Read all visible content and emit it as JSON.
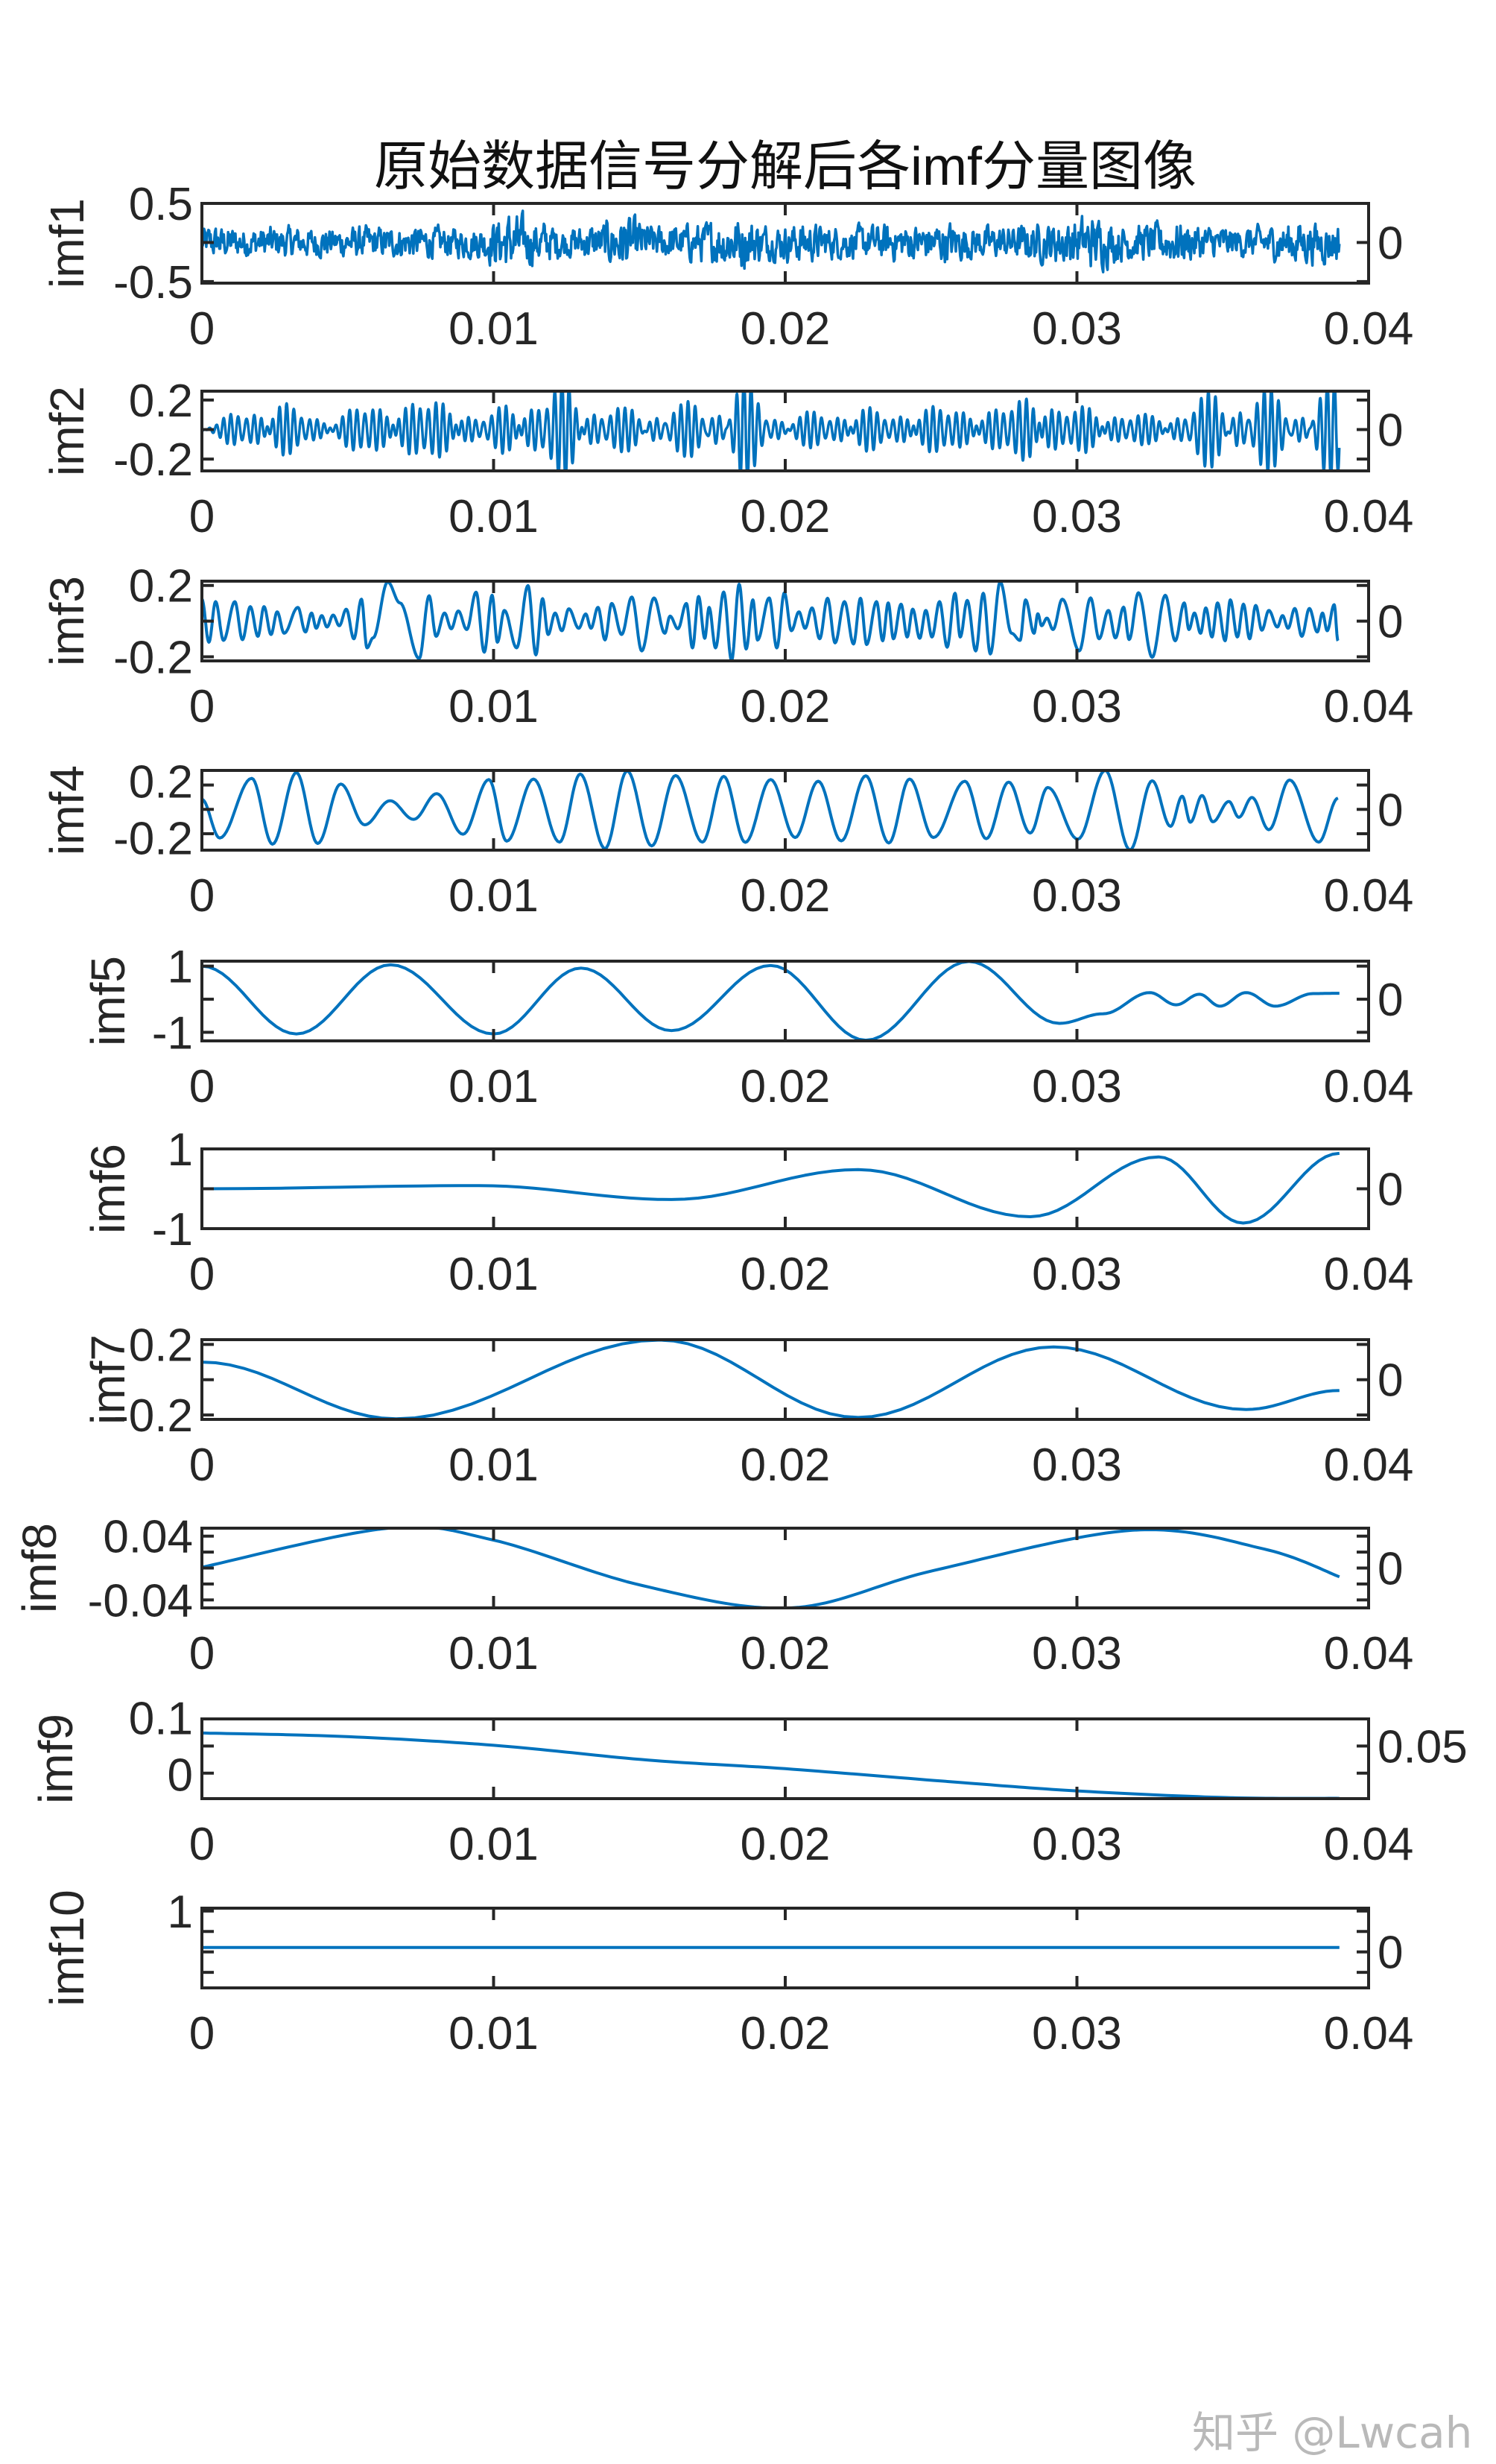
{
  "title": "原始数据信号分解后各imf分量图像",
  "watermark": "知乎 @Lwcah",
  "colors": {
    "line": "#0072BD",
    "axes": "#262626",
    "background": "#ffffff"
  },
  "x_axis": {
    "xlim": [
      0,
      0.04
    ],
    "ticks": [
      0,
      0.01,
      0.02,
      0.03,
      0.04
    ],
    "tick_labels": [
      "0",
      "0.01",
      "0.02",
      "0.03",
      "0.04"
    ]
  },
  "chart_data": [
    {
      "type": "line",
      "ylabel": "imf1",
      "ylim": [
        -0.52,
        0.5
      ],
      "yticks": [
        -0.5,
        0,
        0.5
      ],
      "ytick_labels": [
        "-0.5",
        "0",
        "0.5"
      ],
      "form": "broadband noise",
      "t_end": 0.039,
      "amplitude_envelope_per_ms": [
        0.22,
        0.2,
        0.22,
        0.2,
        0.2,
        0.22,
        0.2,
        0.22,
        0.2,
        0.22,
        0.4,
        0.3,
        0.2,
        0.25,
        0.38,
        0.22,
        0.25,
        0.28,
        0.38,
        0.22,
        0.28,
        0.22,
        0.22,
        0.25,
        0.25,
        0.28,
        0.22,
        0.22,
        0.25,
        0.3,
        0.38,
        0.25,
        0.25,
        0.3,
        0.22,
        0.2,
        0.22,
        0.3,
        0.28
      ]
    },
    {
      "type": "line",
      "ylabel": "imf2",
      "ylim": [
        -0.28,
        0.26
      ],
      "yticks": [
        -0.2,
        0,
        0.2
      ],
      "ytick_labels": [
        "-0.2",
        "0",
        "0.2"
      ],
      "form": "narrowband oscillation ~4 kHz",
      "t_end": 0.039,
      "amplitude_envelope_per_ms": [
        0.03,
        0.13,
        0.15,
        0.1,
        0.05,
        0.15,
        0.12,
        0.17,
        0.15,
        0.06,
        0.14,
        0.18,
        0.26,
        0.15,
        0.1,
        0.15,
        0.12,
        0.18,
        0.26,
        0.12,
        0.08,
        0.1,
        0.13,
        0.08,
        0.12,
        0.13,
        0.1,
        0.13,
        0.2,
        0.12,
        0.12,
        0.1,
        0.07,
        0.12,
        0.18,
        0.22,
        0.2,
        0.15,
        0.23
      ]
    },
    {
      "type": "line",
      "ylabel": "imf3",
      "ylim": [
        -0.223,
        0.224
      ],
      "yticks": [
        -0.2,
        0,
        0.2
      ],
      "ytick_labels": [
        "-0.2",
        "0",
        "0.2"
      ],
      "form": "extrema",
      "x": [
        0,
        0.00024,
        0.00047,
        0.00074,
        0.00113,
        0.00139,
        0.00166,
        0.00192,
        0.00213,
        0.00237,
        0.00258,
        0.00282,
        0.00329,
        0.00355,
        0.00376,
        0.00392,
        0.00411,
        0.00429,
        0.0045,
        0.00471,
        0.00495,
        0.00521,
        0.00547,
        0.00566,
        0.00587,
        0.00637,
        0.00679,
        0.00745,
        0.00779,
        0.00803,
        0.00832,
        0.00855,
        0.00879,
        0.00908,
        0.0094,
        0.00968,
        0.00995,
        0.01013,
        0.01037,
        0.01079,
        0.01118,
        0.01145,
        0.01168,
        0.01187,
        0.01211,
        0.01234,
        0.01258,
        0.01292,
        0.01316,
        0.01334,
        0.01358,
        0.01382,
        0.01405,
        0.01439,
        0.01474,
        0.01508,
        0.0155,
        0.01587,
        0.01605,
        0.01632,
        0.01661,
        0.01682,
        0.01703,
        0.01724,
        0.01739,
        0.01761,
        0.01789,
        0.01816,
        0.01842,
        0.01866,
        0.01889,
        0.01905,
        0.01945,
        0.01971,
        0.01997,
        0.02021,
        0.02047,
        0.02068,
        0.02092,
        0.02118,
        0.02145,
        0.02171,
        0.02203,
        0.02234,
        0.02258,
        0.02279,
        0.02313,
        0.02334,
        0.02353,
        0.02371,
        0.02397,
        0.02418,
        0.02437,
        0.02461,
        0.02482,
        0.02503,
        0.02529,
        0.02555,
        0.02582,
        0.026,
        0.02624,
        0.02653,
        0.02679,
        0.02703,
        0.02737,
        0.02776,
        0.02805,
        0.02824,
        0.02853,
        0.02866,
        0.02879,
        0.02897,
        0.02918,
        0.0295,
        0.03008,
        0.03047,
        0.03076,
        0.03108,
        0.03132,
        0.0316,
        0.03179,
        0.03211,
        0.03258,
        0.03303,
        0.03337,
        0.03368,
        0.03384,
        0.03403,
        0.03424,
        0.03442,
        0.03463,
        0.03482,
        0.03508,
        0.03526,
        0.0355,
        0.03571,
        0.03592,
        0.03613,
        0.03634,
        0.03658,
        0.03687,
        0.03705,
        0.03724,
        0.03747,
        0.03771,
        0.03797,
        0.03824,
        0.03842,
        0.03858,
        0.03882,
        0.03895
      ],
      "y": [
        0.123,
        -0.118,
        0.109,
        -0.108,
        0.109,
        -0.104,
        0.081,
        -0.085,
        0.081,
        -0.075,
        0.052,
        -0.068,
        0.077,
        -0.061,
        0.045,
        -0.04,
        0.031,
        -0.033,
        0.034,
        -0.026,
        0.067,
        -0.099,
        0.123,
        -0.15,
        -0.094,
        0.22,
        0.102,
        -0.21,
        0.142,
        -0.085,
        0.045,
        -0.043,
        0.057,
        -0.047,
        0.162,
        -0.174,
        0.145,
        -0.118,
        0.06,
        -0.15,
        0.199,
        -0.189,
        0.126,
        -0.075,
        0.045,
        -0.054,
        0.069,
        -0.04,
        0.04,
        -0.04,
        0.077,
        -0.105,
        0.099,
        -0.075,
        0.135,
        -0.167,
        0.13,
        -0.068,
        0.028,
        -0.043,
        0.099,
        -0.15,
        0.138,
        -0.096,
        0.077,
        -0.15,
        0.163,
        -0.222,
        0.207,
        -0.156,
        0.119,
        -0.106,
        0.13,
        -0.15,
        0.159,
        -0.054,
        0.052,
        -0.04,
        0.074,
        -0.099,
        0.128,
        -0.122,
        0.109,
        -0.128,
        0.128,
        -0.131,
        0.109,
        -0.11,
        0.102,
        -0.099,
        0.095,
        -0.089,
        0.067,
        -0.096,
        0.06,
        -0.089,
        0.109,
        -0.146,
        0.156,
        -0.089,
        0.116,
        -0.167,
        0.156,
        -0.184,
        0.22,
        -0.068,
        -0.108,
        0.119,
        -0.068,
        0.041,
        -0.026,
        0.017,
        -0.047,
        0.123,
        -0.167,
        0.13,
        -0.099,
        0.06,
        -0.094,
        0.078,
        -0.103,
        0.159,
        -0.203,
        0.145,
        -0.11,
        0.102,
        -0.047,
        0.045,
        -0.068,
        0.074,
        -0.089,
        0.102,
        -0.11,
        0.119,
        -0.089,
        0.095,
        -0.099,
        0.088,
        -0.051,
        0.06,
        -0.033,
        0.031,
        -0.04,
        0.071,
        -0.085,
        0.071,
        -0.061,
        0.045,
        -0.054,
        0.092,
        -0.11
      ]
    },
    {
      "type": "line",
      "ylabel": "imf4",
      "ylim": [
        -0.335,
        0.32
      ],
      "yticks": [
        -0.2,
        0,
        0.2
      ],
      "ytick_labels": [
        "-0.2",
        "0",
        "0.2"
      ],
      "form": "extrema",
      "x": [
        0,
        0.00061,
        0.00171,
        0.00242,
        0.00324,
        0.00397,
        0.00476,
        0.00558,
        0.00645,
        0.00726,
        0.00805,
        0.00895,
        0.00984,
        0.01045,
        0.01137,
        0.01226,
        0.01297,
        0.01382,
        0.01458,
        0.01542,
        0.01624,
        0.01716,
        0.01789,
        0.01863,
        0.0195,
        0.02034,
        0.02113,
        0.02192,
        0.02276,
        0.02355,
        0.02426,
        0.02508,
        0.02616,
        0.02689,
        0.02766,
        0.0284,
        0.029,
        0.03003,
        0.03097,
        0.03182,
        0.03258,
        0.03321,
        0.03361,
        0.03389,
        0.03429,
        0.03466,
        0.03521,
        0.03555,
        0.036,
        0.03658,
        0.03729,
        0.03829,
        0.03895
      ],
      "y": [
        0.082,
        -0.235,
        0.255,
        -0.286,
        0.302,
        -0.28,
        0.208,
        -0.127,
        0.071,
        -0.082,
        0.129,
        -0.204,
        0.245,
        -0.261,
        0.249,
        -0.269,
        0.29,
        -0.322,
        0.316,
        -0.3,
        0.278,
        -0.269,
        0.271,
        -0.271,
        0.245,
        -0.231,
        0.231,
        -0.259,
        0.276,
        -0.276,
        0.249,
        -0.231,
        0.231,
        -0.241,
        0.224,
        -0.194,
        0.18,
        -0.245,
        0.32,
        -0.333,
        0.235,
        -0.139,
        0.108,
        -0.106,
        0.114,
        -0.102,
        0.065,
        -0.065,
        0.098,
        -0.167,
        0.241,
        -0.269,
        0.092
      ]
    },
    {
      "type": "line",
      "ylabel": "imf5",
      "ylim": [
        -1.26,
        1.15
      ],
      "yticks": [
        -1,
        0,
        1
      ],
      "ytick_labels": [
        "-1",
        "0",
        "1"
      ],
      "form": "extrema",
      "x": [
        0,
        0.00324,
        0.00647,
        0.01,
        0.013,
        0.0161,
        0.0195,
        0.02276,
        0.0263,
        0.0294,
        0.0309,
        0.0325,
        0.0334,
        0.0342,
        0.0349,
        0.0358,
        0.0368,
        0.0381,
        0.039
      ],
      "y": [
        1.0,
        -1.05,
        1.04,
        -1.05,
        0.94,
        -0.95,
        1.02,
        -1.24,
        1.14,
        -0.73,
        -0.44,
        0.2,
        -0.17,
        0.15,
        -0.21,
        0.2,
        -0.21,
        0.17,
        0.18
      ]
    },
    {
      "type": "line",
      "ylabel": "imf6",
      "ylim": [
        -1,
        1
      ],
      "yticks": [
        -1,
        0,
        1
      ],
      "ytick_labels": [
        "-1",
        "0",
        "1"
      ],
      "form": "extrema",
      "x": [
        0,
        0.0095,
        0.0161,
        0.0225,
        0.0284,
        0.0328,
        0.0357,
        0.039
      ],
      "y": [
        0,
        0.08,
        -0.27,
        0.48,
        -0.7,
        0.8,
        -0.86,
        0.89
      ]
    },
    {
      "type": "line",
      "ylabel": "imf7",
      "ylim": [
        -0.225,
        0.227
      ],
      "yticks": [
        -0.2,
        0,
        0.2
      ],
      "ytick_labels": [
        "-0.2",
        "0",
        "0.2"
      ],
      "form": "extrema",
      "x": [
        0,
        0.00666,
        0.0157,
        0.0225,
        0.0292,
        0.0358,
        0.039
      ],
      "y": [
        0.1,
        -0.222,
        0.225,
        -0.214,
        0.186,
        -0.169,
        -0.061
      ]
    },
    {
      "type": "line",
      "ylabel": "imf8",
      "ylim": [
        -0.05,
        0.05
      ],
      "yticks": [
        -0.04,
        -0.02,
        0,
        0.02,
        0.04
      ],
      "ytick_labels": [
        "-0.04",
        "",
        "0",
        "",
        "0.04"
      ],
      "form": "smooth",
      "x": [
        0,
        0.0064,
        0.01,
        0.0151,
        0.0202,
        0.0251,
        0.0319,
        0.0364,
        0.039
      ],
      "y": [
        0.001,
        0.05,
        0.035,
        -0.022,
        -0.05,
        -0.003,
        0.0474,
        0.024,
        -0.011
      ]
    },
    {
      "type": "line",
      "ylabel": "imf9",
      "ylim": [
        -0.047,
        0.1
      ],
      "yticks": [
        0,
        0.05,
        0.1
      ],
      "ytick_labels": [
        "0",
        "0.05",
        "0.1"
      ],
      "form": "smooth",
      "x": [
        0,
        0.0048,
        0.01,
        0.0153,
        0.02,
        0.0259,
        0.03,
        0.0351,
        0.039
      ],
      "y": [
        0.074,
        0.0677,
        0.0514,
        0.0241,
        0.0082,
        -0.0168,
        -0.0327,
        -0.045,
        -0.0464
      ]
    },
    {
      "type": "line",
      "ylabel": "imf10",
      "ylim": [
        -0.88,
        1.07
      ],
      "yticks": [
        -0.5,
        0,
        0.5,
        1
      ],
      "ytick_labels": [
        "",
        "0",
        "",
        "1"
      ],
      "form": "smooth",
      "x": [
        0,
        0.039
      ],
      "y": [
        0.11,
        0.11
      ]
    }
  ]
}
